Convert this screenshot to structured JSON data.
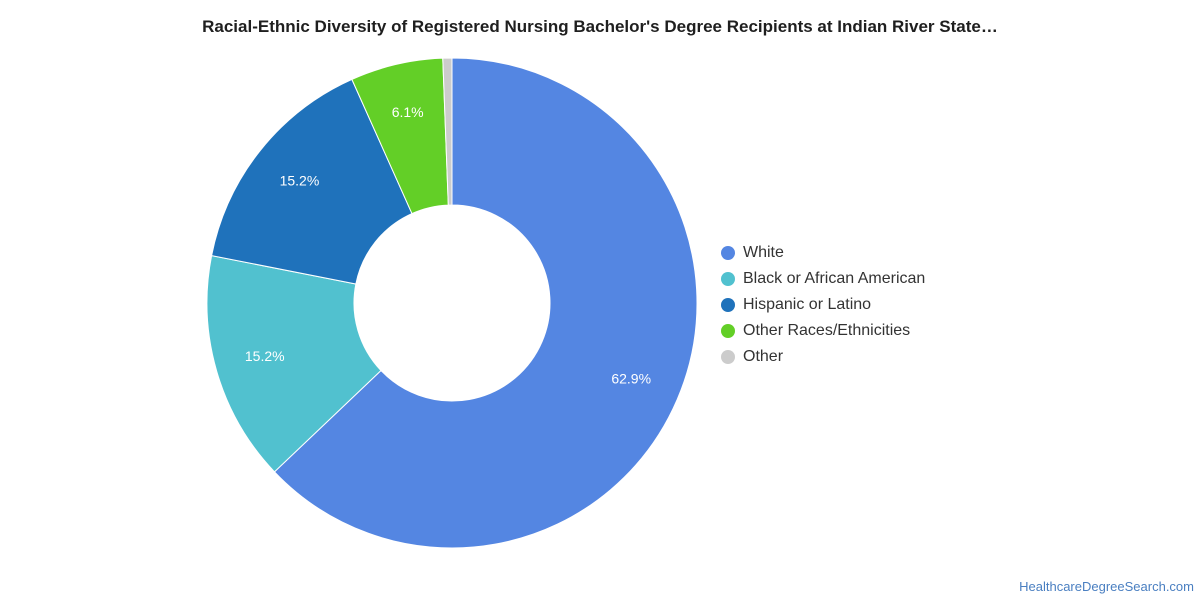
{
  "chart_data": {
    "type": "pie",
    "title": "Racial-Ethnic Diversity of Registered Nursing Bachelor's Degree Recipients at Indian River State…",
    "slices": [
      {
        "label": "White",
        "value": 62.9,
        "value_label": "62.9%",
        "color": "#5486e2"
      },
      {
        "label": "Black or African American",
        "value": 15.2,
        "value_label": "15.2%",
        "color": "#51c1cf"
      },
      {
        "label": "Hispanic or Latino",
        "value": 15.2,
        "value_label": "15.2%",
        "color": "#1f72bb"
      },
      {
        "label": "Other Races/Ethnicities",
        "value": 6.1,
        "value_label": "6.1%",
        "color": "#63cf27"
      },
      {
        "label": "Other",
        "value": 0.6,
        "value_label": "",
        "color": "#cccccc"
      }
    ],
    "donut": true,
    "legend_position": "right"
  },
  "footer": {
    "source": "HealthcareDegreeSearch.com"
  }
}
